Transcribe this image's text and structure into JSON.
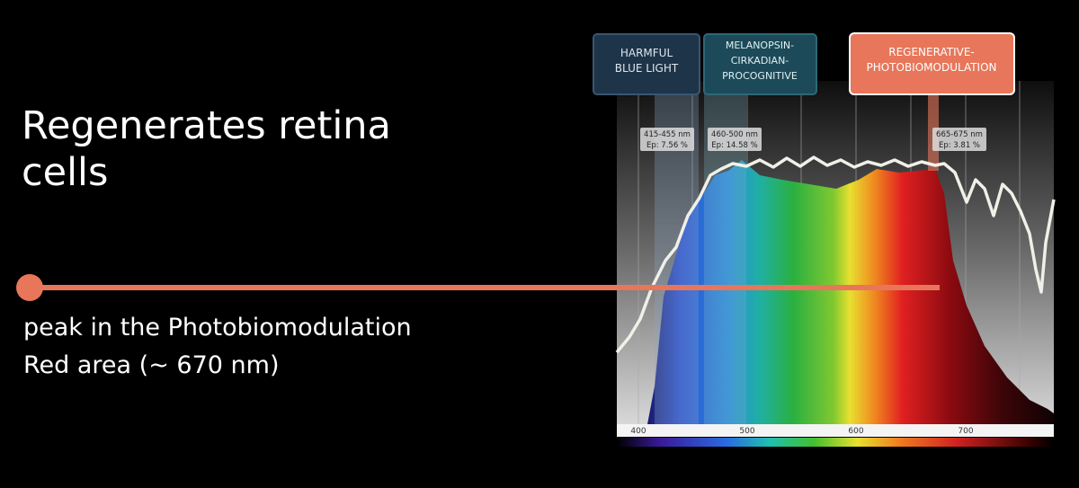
{
  "heading": {
    "lines": [
      "Regenerates retina",
      "cells"
    ]
  },
  "description": {
    "lines": [
      "peak in the Photobiomodulation",
      "Red area (~ 670 nm)"
    ]
  },
  "callouts": [
    {
      "lines": [
        "HARMFUL",
        "BLUE LIGHT"
      ]
    },
    {
      "lines": [
        "MELANOPSIN-",
        "CIRKADIAN-",
        "PROCOGNITIVE"
      ]
    },
    {
      "lines": [
        "REGENERATIVE-",
        "PHOTOBIOMODULATION"
      ]
    }
  ],
  "bands": [
    {
      "range": "415-455 nm",
      "ep": "Ep: 7.56 %"
    },
    {
      "range": "460-500 nm",
      "ep": "Ep: 14.58 %"
    },
    {
      "range": "665-675 nm",
      "ep": "Ep: 3.81 %"
    }
  ],
  "axis_ticks": [
    400,
    500,
    600,
    700
  ]
}
